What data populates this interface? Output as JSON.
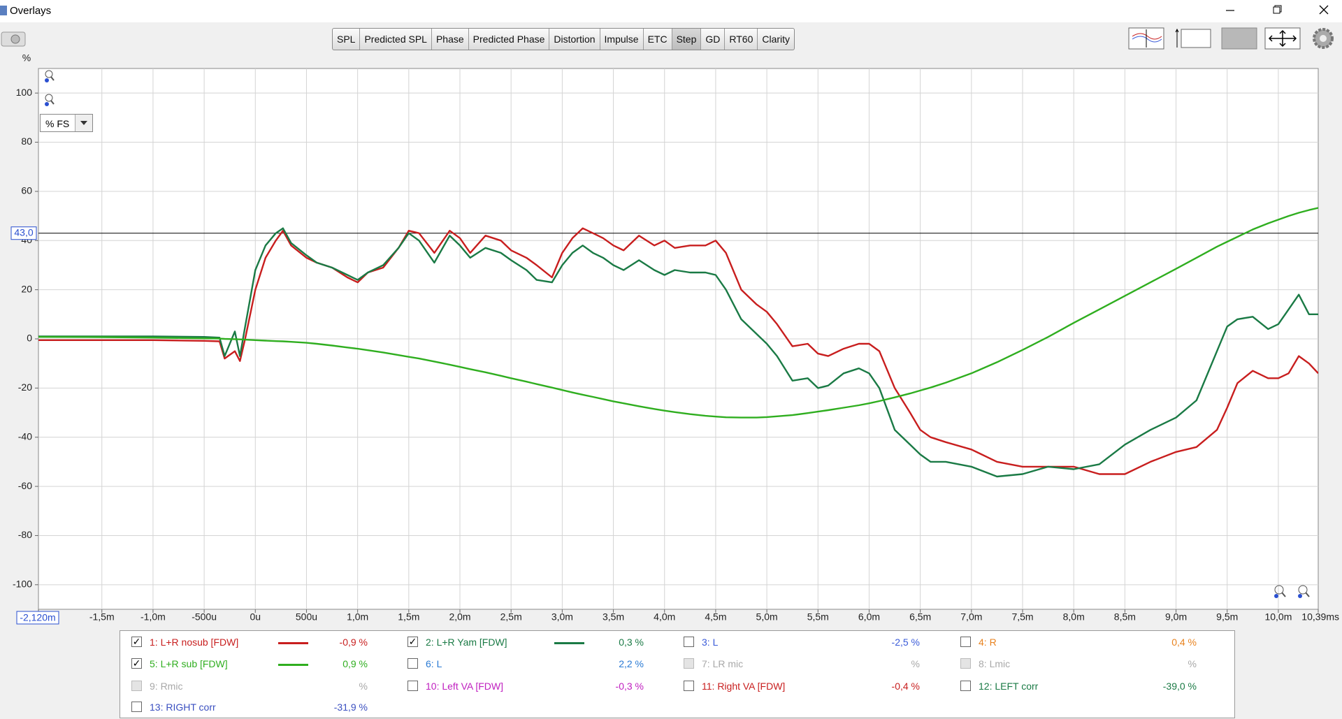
{
  "window": {
    "title": "Overlays"
  },
  "toolbar": {
    "tabs": [
      "SPL",
      "Predicted SPL",
      "Phase",
      "Predicted Phase",
      "Distortion",
      "Impulse",
      "ETC",
      "Step",
      "GD",
      "RT60",
      "Clarity"
    ],
    "active": "Step"
  },
  "plot_controls": {
    "scale_select": "% FS"
  },
  "chart_data": {
    "type": "line",
    "y_unit": "%",
    "x": [
      -2.12,
      -1.5,
      -1.0,
      -0.5,
      -0.35,
      -0.3,
      -0.2,
      -0.15,
      -0.1,
      0,
      0.1,
      0.2,
      0.27,
      0.35,
      0.5,
      0.6,
      0.75,
      0.9,
      1.0,
      1.1,
      1.25,
      1.4,
      1.5,
      1.6,
      1.75,
      1.9,
      2.0,
      2.1,
      2.25,
      2.4,
      2.5,
      2.65,
      2.75,
      2.9,
      3.0,
      3.1,
      3.2,
      3.3,
      3.4,
      3.5,
      3.6,
      3.75,
      3.9,
      4.0,
      4.1,
      4.25,
      4.4,
      4.5,
      4.6,
      4.75,
      4.9,
      5.0,
      5.1,
      5.25,
      5.4,
      5.5,
      5.6,
      5.75,
      5.9,
      6.0,
      6.1,
      6.25,
      6.4,
      6.5,
      6.6,
      6.75,
      7.0,
      7.25,
      7.5,
      7.75,
      8.0,
      8.25,
      8.5,
      8.75,
      9.0,
      9.2,
      9.4,
      9.5,
      9.6,
      9.75,
      9.9,
      10.0,
      10.1,
      10.2,
      10.3,
      10.39
    ],
    "series": [
      {
        "name": "1: L+R nosub [FDW]",
        "color": "#c81e1e",
        "readout": "-0,9 %",
        "checked": true,
        "values": [
          -0.5,
          -0.5,
          -0.5,
          -0.8,
          -1,
          -8,
          -5,
          -9,
          0,
          20,
          33,
          40,
          44,
          38,
          33,
          31,
          29,
          25,
          23,
          27,
          29,
          37,
          44,
          43,
          35,
          44,
          41,
          35,
          42,
          40,
          36,
          33,
          30,
          25,
          35,
          41,
          45,
          43,
          41,
          38,
          36,
          42,
          38,
          40,
          37,
          38,
          38,
          40,
          35,
          20,
          14,
          11,
          6,
          -3,
          -2,
          -6,
          -7,
          -4,
          -2,
          -2,
          -5,
          -20,
          -30,
          -37,
          -40,
          -42,
          -45,
          -50,
          -52,
          -52,
          -52,
          -55,
          -55,
          -50,
          -46,
          -44,
          -37,
          -28,
          -18,
          -13,
          -16,
          -16,
          -14,
          -7,
          -10,
          -14
        ]
      },
      {
        "name": "2: L+R Yam [FDW]",
        "color": "#1a7a45",
        "readout": "0,3 %",
        "checked": true,
        "values": [
          1,
          1,
          1,
          0.8,
          0.5,
          -7,
          3,
          -7,
          5,
          28,
          38,
          43,
          45,
          39,
          34,
          31,
          29,
          26,
          24,
          27,
          30,
          37,
          43,
          40,
          31,
          42,
          38,
          33,
          37,
          35,
          32,
          28,
          24,
          23,
          30,
          35,
          38,
          35,
          33,
          30,
          28,
          32,
          28,
          26,
          28,
          27,
          27,
          26,
          20,
          8,
          2,
          -2,
          -7,
          -17,
          -16,
          -20,
          -19,
          -14,
          -12,
          -14,
          -20,
          -37,
          -43,
          -47,
          -50,
          -50,
          -52,
          -56,
          -55,
          -52,
          -53,
          -51,
          -43,
          -37,
          -32,
          -25,
          -5,
          5,
          8,
          9,
          4,
          6,
          12,
          18,
          10,
          10
        ]
      },
      {
        "name": "5: L+R sub [FDW]",
        "color": "#2fae1f",
        "readout": "0,9 %",
        "checked": true,
        "values": [
          0.8,
          0.7,
          0.5,
          0.2,
          0.1,
          0,
          -0.1,
          -0.2,
          -0.3,
          -0.5,
          -0.7,
          -0.9,
          -1,
          -1.2,
          -1.6,
          -2,
          -2.7,
          -3.5,
          -4,
          -4.6,
          -5.5,
          -6.6,
          -7.3,
          -8,
          -9.2,
          -10.5,
          -11.4,
          -12.3,
          -13.6,
          -15,
          -16,
          -17.4,
          -18.4,
          -19.8,
          -20.8,
          -21.8,
          -22.7,
          -23.6,
          -24.5,
          -25.4,
          -26.2,
          -27.4,
          -28.5,
          -29.2,
          -29.8,
          -30.6,
          -31.3,
          -31.6,
          -31.9,
          -32,
          -32,
          -31.8,
          -31.5,
          -31,
          -30.2,
          -29.6,
          -29,
          -28,
          -27,
          -26.2,
          -25.3,
          -23.8,
          -22.2,
          -21,
          -19.8,
          -17.8,
          -14,
          -9.5,
          -4.5,
          0.8,
          6.5,
          12,
          17.5,
          23,
          28.5,
          33,
          37.5,
          39.5,
          41.5,
          44.5,
          47,
          48.5,
          50,
          51.3,
          52.4,
          53.3
        ]
      }
    ],
    "other_traces": [
      {
        "name": "3: L",
        "color": "#3a5bd9",
        "readout": "-2,5 %",
        "checked": false,
        "disabled": false
      },
      {
        "name": "4: R",
        "color": "#e8821e",
        "readout": "0,4 %",
        "checked": false,
        "disabled": false
      },
      {
        "name": "6: L",
        "color": "#2a7ad4",
        "readout": "2,2 %",
        "checked": false,
        "disabled": false
      },
      {
        "name": "7: LR mic",
        "color": "#a8a8a8",
        "readout": "%",
        "checked": false,
        "disabled": true
      },
      {
        "name": "8: Lmic",
        "color": "#a8a8a8",
        "readout": "%",
        "checked": false,
        "disabled": true
      },
      {
        "name": "9: Rmic",
        "color": "#a8a8a8",
        "readout": "%",
        "checked": false,
        "disabled": true
      },
      {
        "name": "10: Left VA [FDW]",
        "color": "#c020c0",
        "readout": "-0,3 %",
        "checked": false,
        "disabled": false
      },
      {
        "name": "11: Right VA [FDW]",
        "color": "#c81e1e",
        "readout": "-0,4 %",
        "checked": false,
        "disabled": false
      },
      {
        "name": "12: LEFT corr",
        "color": "#1a7a45",
        "readout": "-39,0 %",
        "checked": false,
        "disabled": false
      },
      {
        "name": "13: RIGHT corr",
        "color": "#3a4fc0",
        "readout": "-31,9 %",
        "checked": false,
        "disabled": false
      }
    ],
    "xlim": [
      -2.12,
      10.39
    ],
    "ylim": [
      -110,
      110
    ],
    "xticks": [
      {
        "value": -2.12,
        "label": "-2,120m"
      },
      {
        "value": -1.5,
        "label": "-1,5m"
      },
      {
        "value": -1.0,
        "label": "-1,0m"
      },
      {
        "value": -0.5,
        "label": "-500u"
      },
      {
        "value": 0,
        "label": "0u"
      },
      {
        "value": 0.5,
        "label": "500u"
      },
      {
        "value": 1.0,
        "label": "1,0m"
      },
      {
        "value": 1.5,
        "label": "1,5m"
      },
      {
        "value": 2.0,
        "label": "2,0m"
      },
      {
        "value": 2.5,
        "label": "2,5m"
      },
      {
        "value": 3.0,
        "label": "3,0m"
      },
      {
        "value": 3.5,
        "label": "3,5m"
      },
      {
        "value": 4.0,
        "label": "4,0m"
      },
      {
        "value": 4.5,
        "label": "4,5m"
      },
      {
        "value": 5.0,
        "label": "5,0m"
      },
      {
        "value": 5.5,
        "label": "5,5m"
      },
      {
        "value": 6.0,
        "label": "6,0m"
      },
      {
        "value": 6.5,
        "label": "6,5m"
      },
      {
        "value": 7.0,
        "label": "7,0m"
      },
      {
        "value": 7.5,
        "label": "7,5m"
      },
      {
        "value": 8.0,
        "label": "8,0m"
      },
      {
        "value": 8.5,
        "label": "8,5m"
      },
      {
        "value": 9.0,
        "label": "9,0m"
      },
      {
        "value": 9.5,
        "label": "9,5m"
      },
      {
        "value": 10.0,
        "label": "10,0m"
      },
      {
        "value": 10.39,
        "label": "10,39ms"
      }
    ],
    "yticks": [
      -100,
      -80,
      -60,
      -40,
      -20,
      0,
      20,
      40,
      60,
      80,
      100
    ],
    "cursor": {
      "value": 43,
      "label": "43,0"
    },
    "grid": true
  }
}
